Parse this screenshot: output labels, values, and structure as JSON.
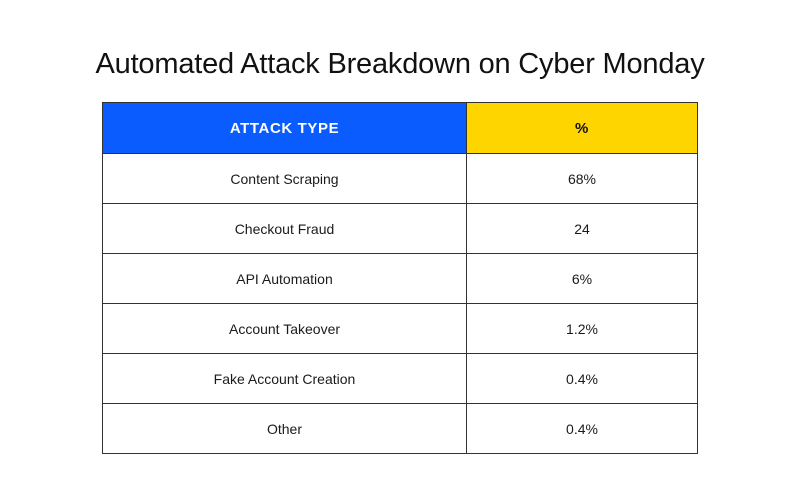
{
  "chart_data": {
    "type": "table",
    "title": "Automated Attack Breakdown on Cyber Monday",
    "columns": [
      "ATTACK TYPE",
      "%"
    ],
    "rows": [
      [
        "Content Scraping",
        "68%"
      ],
      [
        "Checkout Fraud",
        "24"
      ],
      [
        "API Automation",
        "6%"
      ],
      [
        "Account Takeover",
        "1.2%"
      ],
      [
        "Fake Account Creation",
        "0.4%"
      ],
      [
        "Other",
        "0.4%"
      ]
    ],
    "header_colors": [
      "#0b5cff",
      "#ffd500"
    ]
  }
}
